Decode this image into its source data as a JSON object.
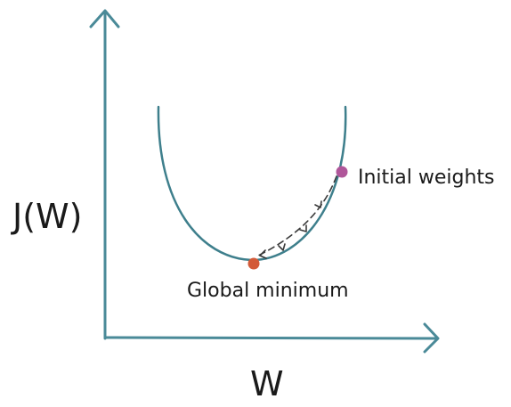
{
  "axes": {
    "y_label": "J(W)",
    "x_label": "W",
    "color": "#4a8a98"
  },
  "curve": {
    "color": "#3e7f8c"
  },
  "points": {
    "initial": {
      "label": "Initial weights",
      "color": "#b0569a"
    },
    "minimum": {
      "label": "Global minimum",
      "color": "#d35a38"
    }
  },
  "descent_path": {
    "color": "#3a3a3a"
  }
}
